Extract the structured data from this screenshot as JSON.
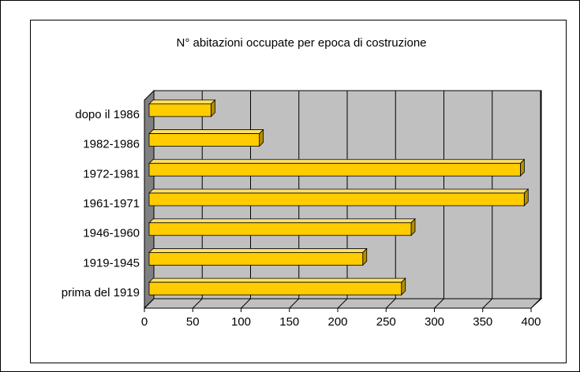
{
  "chart_data": {
    "type": "bar",
    "orientation": "horizontal",
    "title": "N° abitazioni occupate per epoca di costruzione",
    "categories": [
      "prima del 1919",
      "1919-1945",
      "1946-1960",
      "1961-1971",
      "1972-1981",
      "1982-1986",
      "dopo il 1986"
    ],
    "values": [
      261,
      221,
      271,
      388,
      384,
      114,
      64
    ],
    "color": "#ffcc00",
    "xlim": [
      0,
      400
    ],
    "xticks": [
      0,
      50,
      100,
      150,
      200,
      250,
      300,
      350,
      400
    ],
    "grid": true
  }
}
